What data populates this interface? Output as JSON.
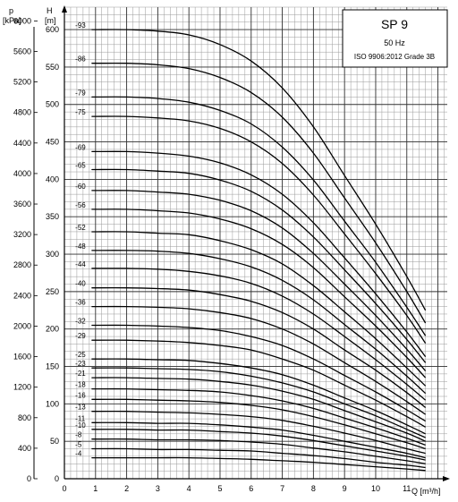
{
  "chart_data": {
    "type": "line",
    "title": "SP 9",
    "subtitle": "50 Hz",
    "standard": "ISO 9906:2012 Grade 3B",
    "xlabel": "Q [m³/h]",
    "ylabel": "H [m]",
    "ylabel_secondary": "p [kPa]",
    "y_unit_top": "H",
    "y_unit_bottom": "[m]",
    "p_unit_top": "p",
    "p_unit_bottom": "[kPa]",
    "xlim": [
      0,
      12.3
    ],
    "ylim": [
      0,
      630
    ],
    "x_ticks": [
      "0",
      "1",
      "2",
      "3",
      "4",
      "5",
      "6",
      "7",
      "8",
      "9",
      "10",
      "11"
    ],
    "y_ticks": [
      "0",
      "50",
      "100",
      "150",
      "200",
      "250",
      "300",
      "350",
      "400",
      "450",
      "500",
      "550",
      "600"
    ],
    "p_ticks": [
      "0",
      "400",
      "800",
      "1200",
      "1600",
      "2000",
      "2400",
      "2800",
      "3200",
      "3600",
      "4000",
      "4400",
      "4800",
      "5200",
      "5600",
      "6000"
    ],
    "grid": true,
    "q_points": [
      0,
      1,
      2,
      3,
      4,
      5,
      6,
      7,
      8,
      9,
      10,
      11,
      11.6
    ],
    "curve_shape_note": "",
    "series": [
      {
        "name": "-93",
        "values": [
          600,
          600,
          600,
          598,
          593,
          580,
          558,
          522,
          470,
          405,
          340,
          270,
          225
        ]
      },
      {
        "name": "-86",
        "values": [
          555,
          555,
          555,
          553,
          548,
          536,
          516,
          483,
          435,
          375,
          315,
          250,
          208
        ]
      },
      {
        "name": "-79",
        "values": [
          510,
          510,
          510,
          508,
          503,
          492,
          474,
          443,
          399,
          344,
          289,
          229,
          191
        ]
      },
      {
        "name": "-75",
        "values": [
          484,
          484,
          484,
          482,
          478,
          468,
          450,
          421,
          379,
          327,
          274,
          218,
          181
        ]
      },
      {
        "name": "-69",
        "values": [
          437,
          437,
          437,
          435,
          431,
          422,
          406,
          380,
          342,
          295,
          247,
          196,
          163
        ]
      },
      {
        "name": "-65",
        "values": [
          413,
          413,
          413,
          411,
          408,
          399,
          384,
          359,
          323,
          279,
          234,
          186,
          155
        ]
      },
      {
        "name": "-60",
        "values": [
          385,
          385,
          385,
          383,
          380,
          372,
          358,
          335,
          301,
          260,
          218,
          173,
          144
        ]
      },
      {
        "name": "-56",
        "values": [
          360,
          360,
          360,
          358,
          355,
          347,
          334,
          313,
          282,
          243,
          204,
          162,
          135
        ]
      },
      {
        "name": "-52",
        "values": [
          330,
          330,
          330,
          328,
          326,
          318,
          306,
          287,
          258,
          223,
          187,
          148,
          124
        ]
      },
      {
        "name": "-48",
        "values": [
          305,
          305,
          305,
          304,
          301,
          294,
          283,
          265,
          239,
          206,
          173,
          137,
          114
        ]
      },
      {
        "name": "-44",
        "values": [
          281,
          281,
          281,
          280,
          277,
          271,
          261,
          244,
          220,
          190,
          159,
          126,
          105
        ]
      },
      {
        "name": "-40",
        "values": [
          255,
          255,
          255,
          254,
          252,
          246,
          237,
          222,
          200,
          172,
          145,
          115,
          95
        ]
      },
      {
        "name": "-36",
        "values": [
          230,
          230,
          230,
          229,
          227,
          222,
          214,
          200,
          180,
          155,
          130,
          103,
          86
        ]
      },
      {
        "name": "-32",
        "values": [
          205,
          205,
          205,
          204,
          202,
          198,
          190,
          178,
          160,
          138,
          116,
          92,
          77
        ]
      },
      {
        "name": "-29",
        "values": [
          185,
          185,
          185,
          184,
          182,
          178,
          172,
          160,
          145,
          125,
          105,
          83,
          69
        ]
      },
      {
        "name": "-25",
        "values": [
          160,
          160,
          160,
          159,
          158,
          154,
          148,
          139,
          125,
          108,
          91,
          72,
          60
        ]
      },
      {
        "name": "-23",
        "values": [
          148,
          148,
          148,
          147,
          146,
          143,
          137,
          128,
          116,
          100,
          84,
          66,
          55
        ]
      },
      {
        "name": "-21",
        "values": [
          135,
          135,
          135,
          134,
          133,
          130,
          125,
          117,
          106,
          91,
          76,
          61,
          50
        ]
      },
      {
        "name": "-18",
        "values": [
          120,
          120,
          120,
          119,
          118,
          116,
          111,
          104,
          94,
          81,
          68,
          54,
          45
        ]
      },
      {
        "name": "-16",
        "values": [
          106,
          106,
          106,
          105,
          104,
          102,
          98,
          92,
          83,
          72,
          60,
          48,
          40
        ]
      },
      {
        "name": "-13",
        "values": [
          90,
          90,
          90,
          89,
          88,
          86,
          83,
          78,
          70,
          61,
          51,
          40,
          34
        ]
      },
      {
        "name": "-11",
        "values": [
          75,
          75,
          75,
          74,
          74,
          72,
          69,
          65,
          58,
          50,
          42,
          34,
          28
        ]
      },
      {
        "name": "-10",
        "values": [
          66,
          66,
          66,
          65,
          65,
          63,
          61,
          57,
          51,
          44,
          37,
          30,
          25
        ]
      },
      {
        "name": "-8",
        "values": [
          53,
          53,
          53,
          52,
          52,
          51,
          49,
          46,
          41,
          36,
          30,
          24,
          20
        ]
      },
      {
        "name": "-5",
        "values": [
          40,
          40,
          40,
          39,
          39,
          38,
          37,
          34,
          31,
          27,
          22,
          18,
          15
        ]
      },
      {
        "name": "-4",
        "values": [
          28,
          28,
          28,
          28,
          28,
          27,
          26,
          24,
          22,
          19,
          16,
          13,
          11
        ]
      }
    ]
  }
}
